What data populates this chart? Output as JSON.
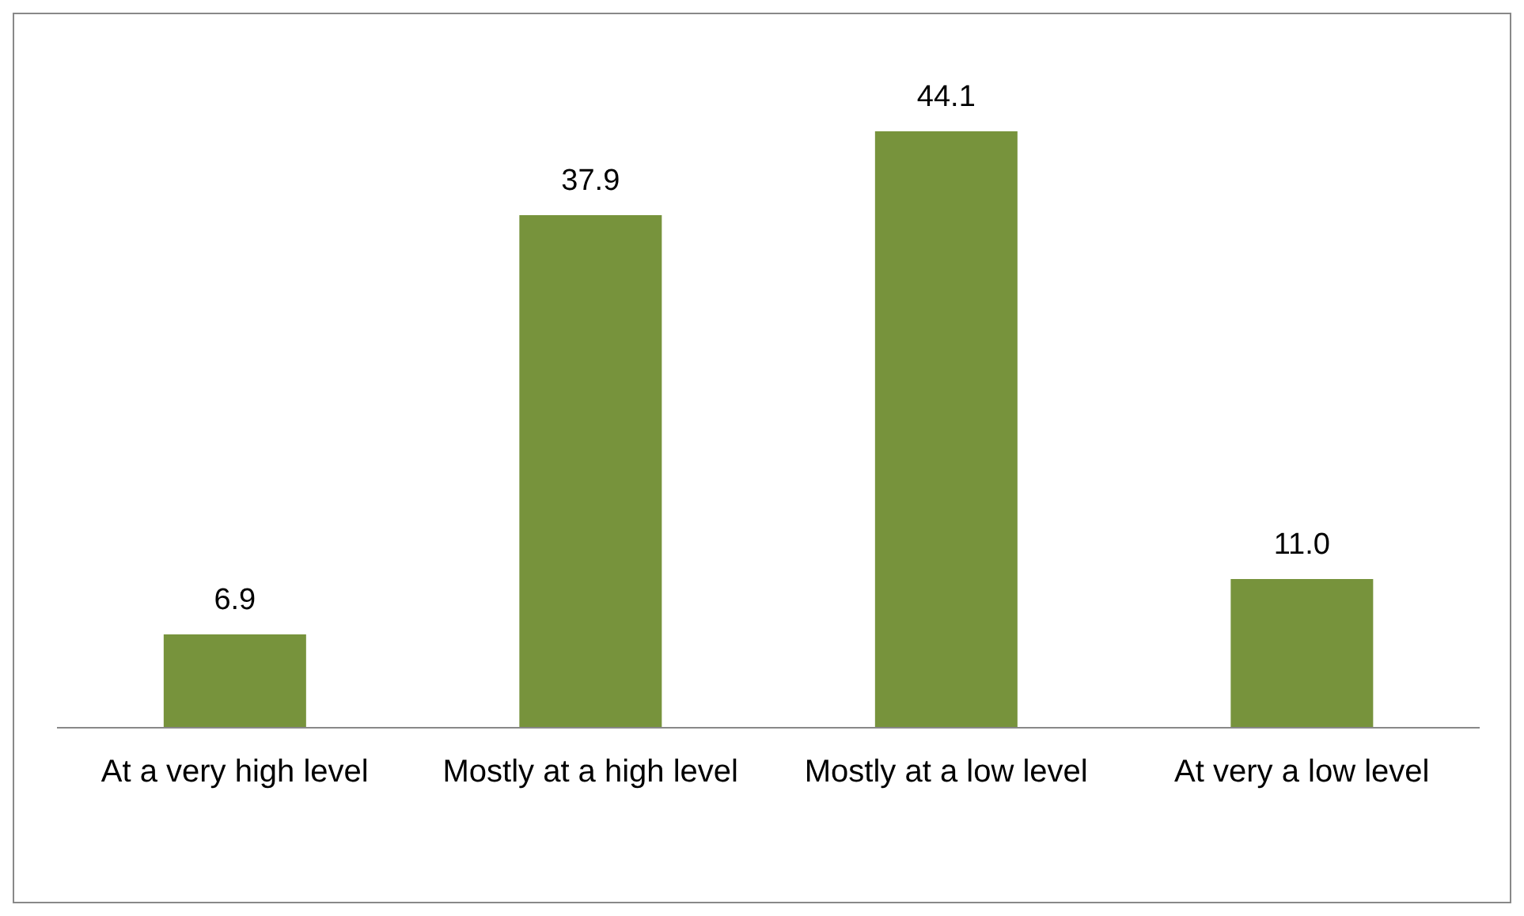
{
  "chart_data": {
    "type": "bar",
    "categories": [
      "At a very high level",
      "Mostly at a high level",
      "Mostly at a low level",
      "At very a low level"
    ],
    "values": [
      6.9,
      37.9,
      44.1,
      11.0
    ],
    "value_labels": [
      "6.9",
      "37.9",
      "44.1",
      "11.0"
    ],
    "color": "#77933c"
  }
}
